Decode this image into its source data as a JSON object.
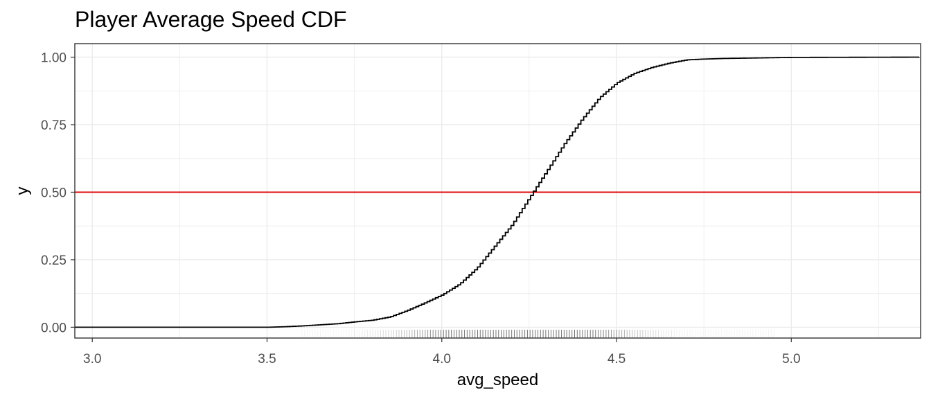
{
  "chart_data": {
    "type": "line",
    "title": "Player Average Speed CDF",
    "xlabel": "avg_speed",
    "ylabel": "y",
    "xlim": [
      2.95,
      5.37
    ],
    "ylim": [
      -0.04,
      1.05
    ],
    "xticks": [
      3.0,
      3.5,
      4.0,
      4.5,
      5.0
    ],
    "xtick_labels": [
      "3.0",
      "3.5",
      "4.0",
      "4.5",
      "5.0"
    ],
    "yticks": [
      0.0,
      0.25,
      0.5,
      0.75,
      1.0
    ],
    "ytick_labels": [
      "0.00",
      "0.25",
      "0.50",
      "0.75",
      "1.00"
    ],
    "grid": true,
    "series": [
      {
        "style": "step",
        "color": "#000000",
        "x": [
          2.95,
          3.5,
          3.55,
          3.6,
          3.65,
          3.7,
          3.75,
          3.8,
          3.85,
          3.9,
          3.95,
          4.0,
          4.05,
          4.1,
          4.15,
          4.2,
          4.25,
          4.3,
          4.35,
          4.4,
          4.45,
          4.5,
          4.55,
          4.6,
          4.65,
          4.7,
          4.75,
          4.8,
          4.9,
          5.0,
          5.37
        ],
        "y": [
          0.0,
          0.0,
          0.002,
          0.005,
          0.009,
          0.013,
          0.02,
          0.026,
          0.038,
          0.062,
          0.09,
          0.12,
          0.16,
          0.22,
          0.3,
          0.38,
          0.48,
          0.58,
          0.68,
          0.77,
          0.85,
          0.905,
          0.94,
          0.962,
          0.978,
          0.99,
          0.993,
          0.995,
          0.997,
          0.999,
          1.0
        ]
      }
    ],
    "reference_lines": [
      {
        "orientation": "horizontal",
        "y": 0.5,
        "color": "#dd0000"
      }
    ],
    "rug": {
      "color": "#000000",
      "x_range": [
        3.6,
        4.95
      ],
      "center": 4.22
    },
    "colors": {
      "line": "#000000",
      "reference": "#dd0000",
      "grid": "#ebebeb",
      "panel_border": "#333333",
      "tick_text": "#4d4d4d"
    }
  }
}
